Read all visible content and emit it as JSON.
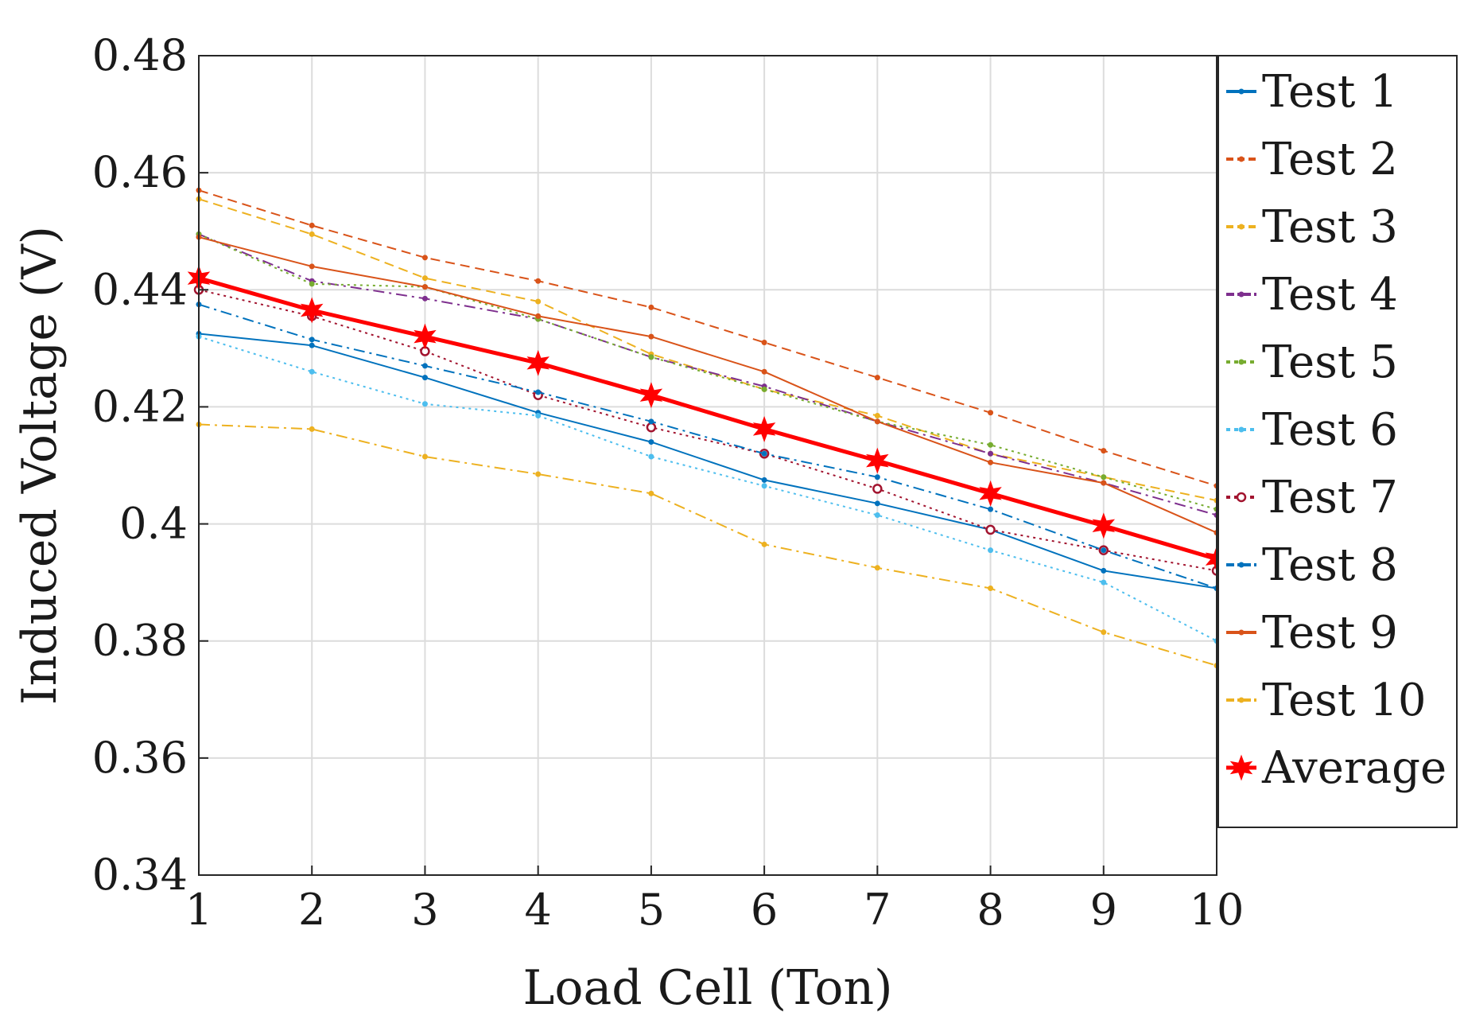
{
  "chart_data": {
    "type": "line",
    "title": "",
    "xlabel": "Load Cell (Ton)",
    "ylabel": "Induced Voltage (V)",
    "xlim": [
      1,
      10
    ],
    "ylim": [
      0.34,
      0.48
    ],
    "grid": true,
    "legend_position": "right-outside-top",
    "x": [
      1,
      2,
      3,
      4,
      5,
      6,
      7,
      8,
      9,
      10
    ],
    "x_tick_labels": [
      "1",
      "2",
      "3",
      "4",
      "5",
      "6",
      "7",
      "8",
      "9",
      "10"
    ],
    "y_ticks": [
      0.34,
      0.36,
      0.38,
      0.4,
      0.42,
      0.44,
      0.46,
      0.48
    ],
    "y_tick_labels": [
      "0.34",
      "0.36",
      "0.38",
      "0.4",
      "0.42",
      "0.44",
      "0.46",
      "0.48"
    ],
    "series": [
      {
        "name": "Test 1",
        "color": "#0072BD",
        "dash": "solid",
        "marker": "dot",
        "width": 2,
        "values": [
          0.4325,
          0.4305,
          0.425,
          0.419,
          0.414,
          0.4075,
          0.4035,
          0.399,
          0.392,
          0.389
        ]
      },
      {
        "name": "Test 2",
        "color": "#D95319",
        "dash": "dashed",
        "marker": "dot",
        "width": 2,
        "values": [
          0.457,
          0.451,
          0.4455,
          0.4415,
          0.437,
          0.431,
          0.425,
          0.419,
          0.4125,
          0.4065
        ]
      },
      {
        "name": "Test 3",
        "color": "#EDB120",
        "dash": "dashed",
        "marker": "dot",
        "width": 2,
        "values": [
          0.4555,
          0.4495,
          0.442,
          0.438,
          0.429,
          0.423,
          0.4185,
          0.412,
          0.408,
          0.404
        ]
      },
      {
        "name": "Test 4",
        "color": "#7E2F8E",
        "dash": "dashdot",
        "marker": "dot",
        "width": 2,
        "values": [
          0.4495,
          0.4415,
          0.4385,
          0.435,
          0.4285,
          0.4235,
          0.4175,
          0.412,
          0.407,
          0.4015
        ]
      },
      {
        "name": "Test 5",
        "color": "#77AC30",
        "dash": "dotted",
        "marker": "dot",
        "width": 2,
        "values": [
          0.4495,
          0.441,
          0.4405,
          0.435,
          0.4285,
          0.423,
          0.4175,
          0.4135,
          0.408,
          0.4025
        ]
      },
      {
        "name": "Test 6",
        "color": "#4DBEEE",
        "dash": "dotted",
        "marker": "dot",
        "width": 2,
        "values": [
          0.432,
          0.426,
          0.4205,
          0.4185,
          0.4115,
          0.4065,
          0.4015,
          0.3955,
          0.39,
          0.38
        ]
      },
      {
        "name": "Test 7",
        "color": "#A2142F",
        "dash": "dotted",
        "marker": "ring",
        "width": 2,
        "values": [
          0.44,
          0.4355,
          0.4295,
          0.422,
          0.4165,
          0.412,
          0.406,
          0.399,
          0.3955,
          0.392
        ]
      },
      {
        "name": "Test 8",
        "color": "#0072BD",
        "dash": "dashdot",
        "marker": "dot",
        "width": 2,
        "values": [
          0.4375,
          0.4315,
          0.427,
          0.4225,
          0.4175,
          0.412,
          0.408,
          0.4025,
          0.3955,
          0.389
        ]
      },
      {
        "name": "Test 9",
        "color": "#D95319",
        "dash": "solid",
        "marker": "dot",
        "width": 2,
        "values": [
          0.449,
          0.444,
          0.4405,
          0.4355,
          0.432,
          0.426,
          0.4175,
          0.4105,
          0.407,
          0.3985
        ]
      },
      {
        "name": "Test 10",
        "color": "#EDB120",
        "dash": "dashdot",
        "marker": "dot",
        "width": 2,
        "values": [
          0.417,
          0.4162,
          0.4115,
          0.4085,
          0.4052,
          0.3965,
          0.3925,
          0.389,
          0.3815,
          0.3758
        ]
      },
      {
        "name": "Average",
        "color": "#FF0000",
        "dash": "solid",
        "marker": "star",
        "width": 5,
        "values": [
          0.442,
          0.4365,
          0.432,
          0.4275,
          0.422,
          0.4162,
          0.4108,
          0.4052,
          0.3997,
          0.394
        ]
      }
    ]
  }
}
